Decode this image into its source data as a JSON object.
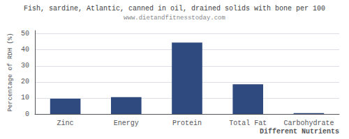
{
  "chart_data": {
    "type": "bar",
    "title": "Fish, sardine, Atlantic, canned in oil, drained solids with bone per 100",
    "subtitle": "www.dietandfitnesstoday.com",
    "categories": [
      "Zinc",
      "Energy",
      "Protein",
      "Total Fat",
      "Carbohydrate"
    ],
    "values": [
      9.5,
      10.5,
      44.5,
      18.5,
      0.5
    ],
    "color": "#2e4a7e",
    "xlabel": "Different Nutrients",
    "ylabel": "Percentage of RDH (%)",
    "ylim": [
      0,
      52
    ],
    "yticks": [
      0,
      10,
      20,
      30,
      40,
      50
    ],
    "grid": true
  }
}
